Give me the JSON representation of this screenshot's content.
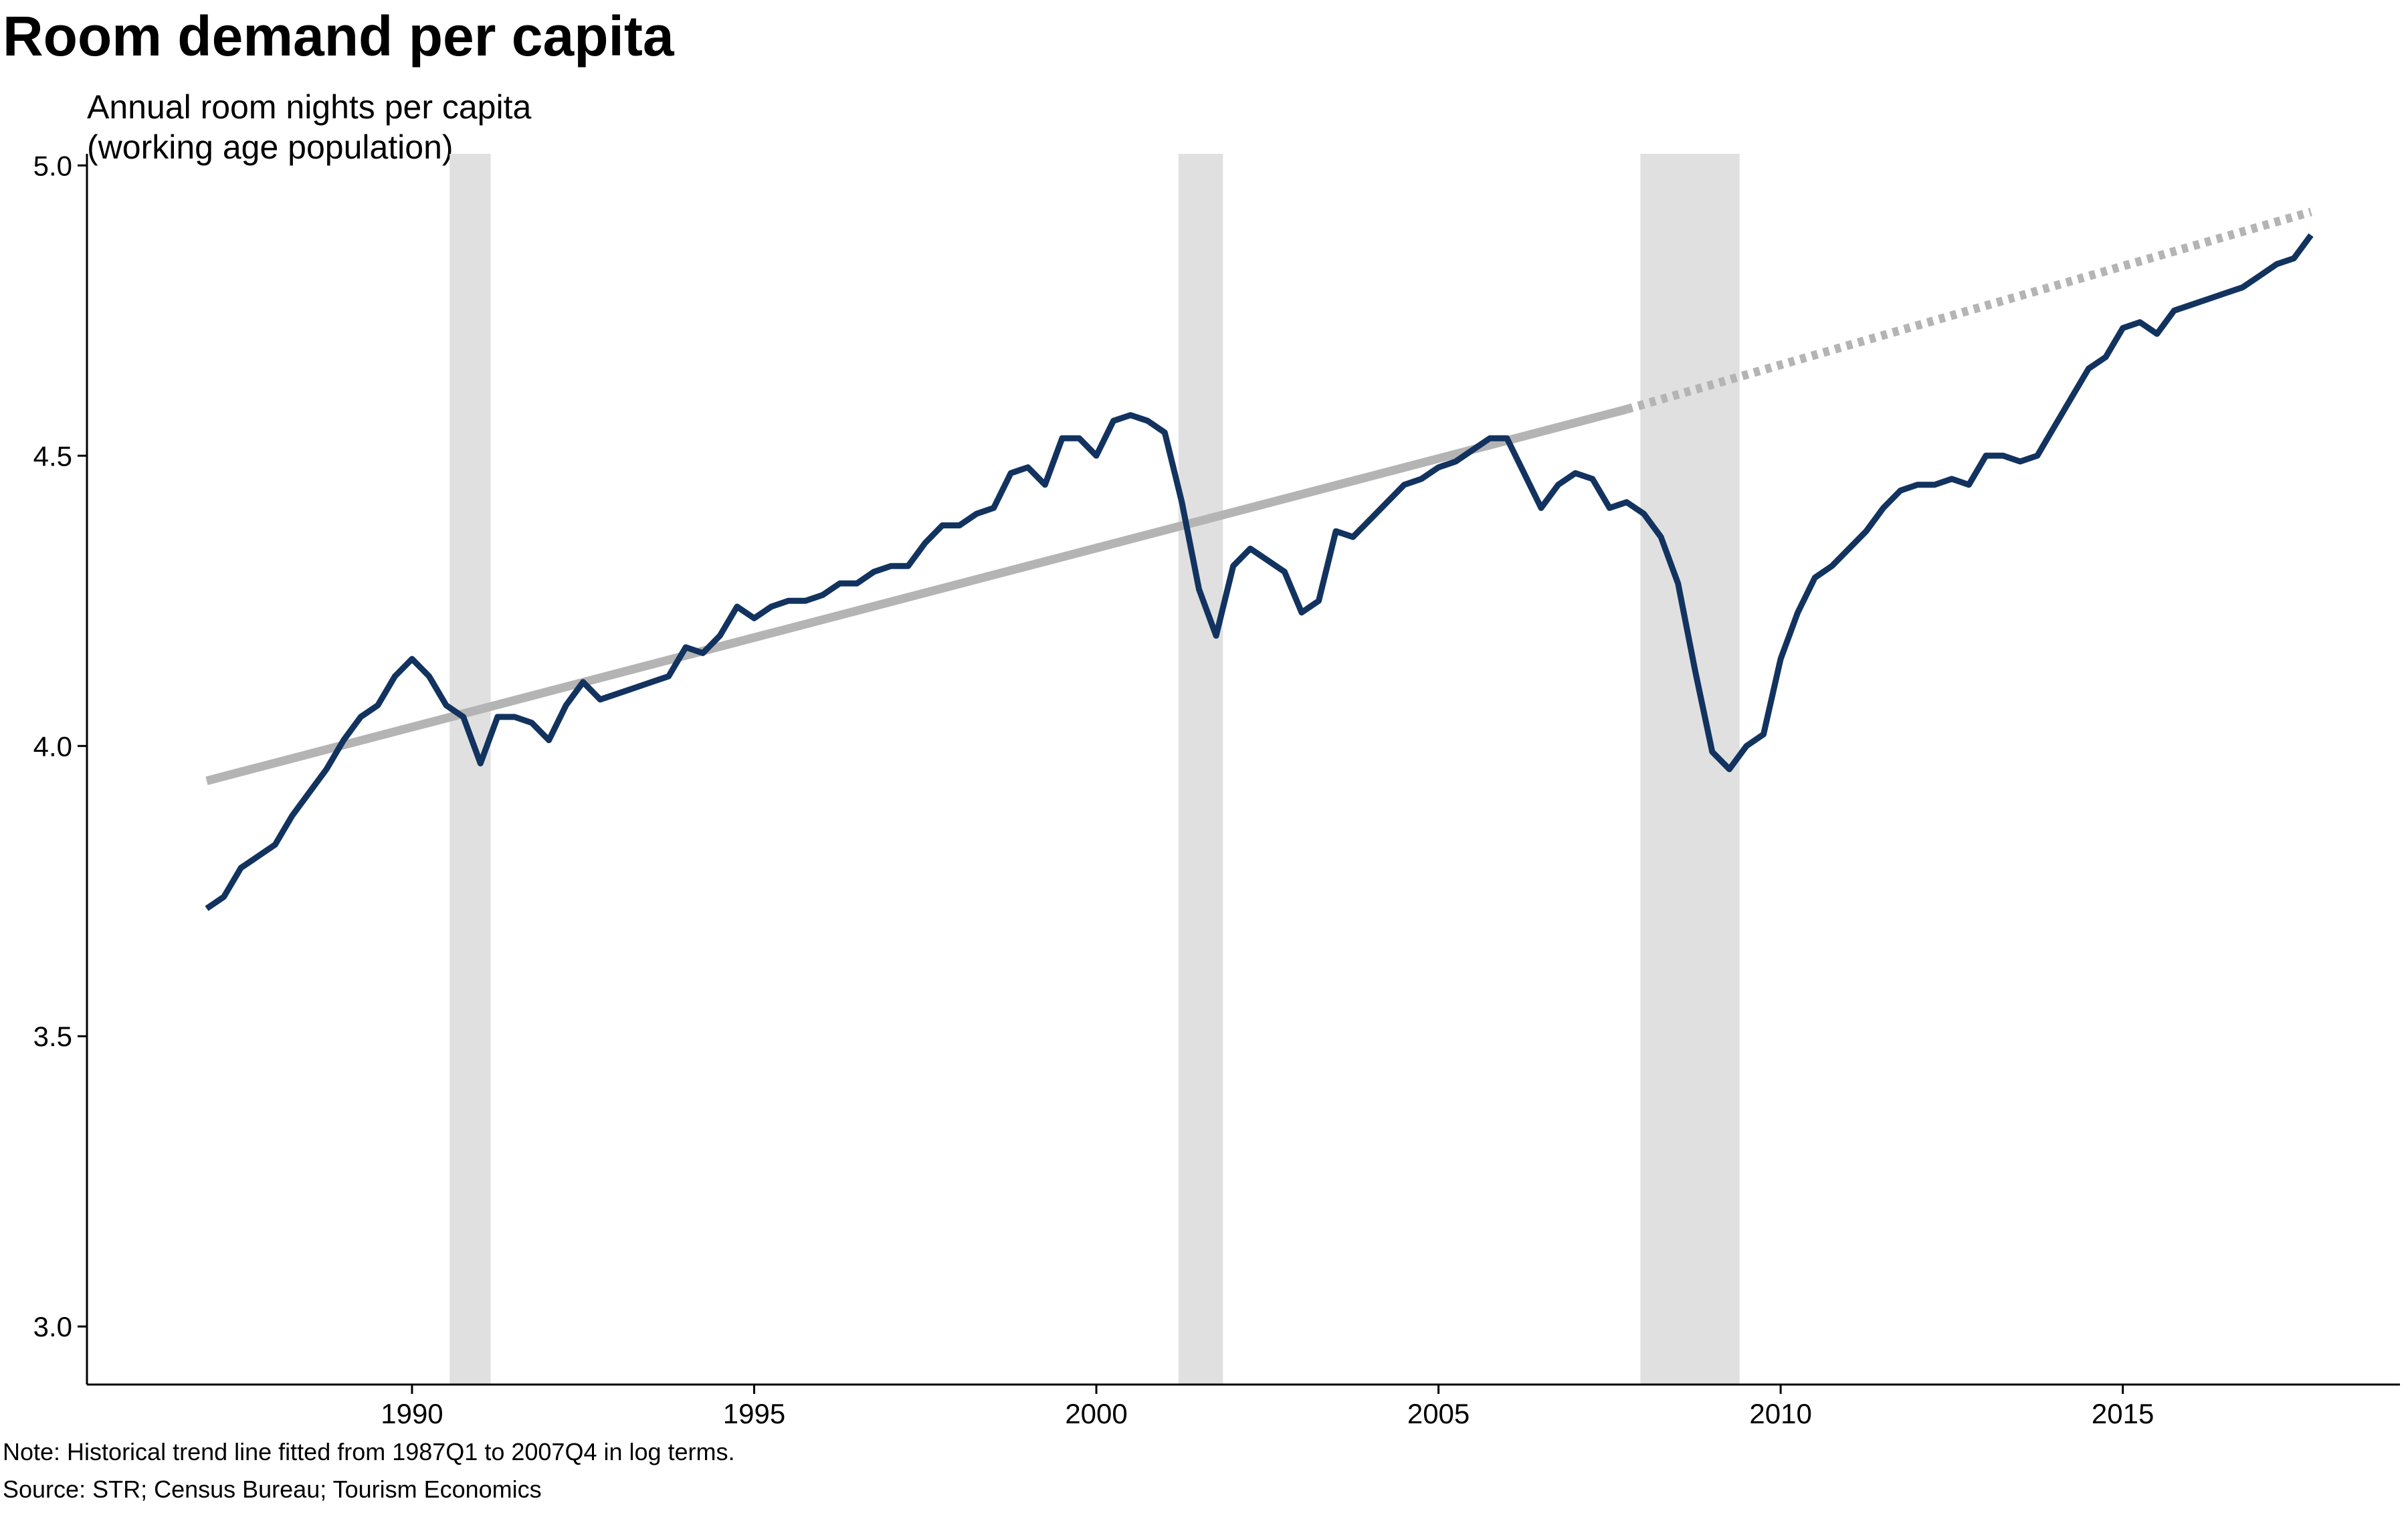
{
  "chart_data": {
    "type": "line",
    "title": "Room demand per capita",
    "ylabel": [
      "Annual room nights per capita",
      "(working age population)"
    ],
    "xlabel": "",
    "xlim": [
      1985.25,
      2019.05
    ],
    "ylim": [
      2.9,
      5.02
    ],
    "yticks": [
      3.0,
      3.5,
      4.0,
      4.5,
      5.0
    ],
    "ytick_labels": [
      "3.0",
      "3.5",
      "4.0",
      "4.5",
      "5.0"
    ],
    "xticks": [
      1990,
      1995,
      2000,
      2005,
      2010,
      2015
    ],
    "xtick_labels": [
      "1990",
      "1995",
      "2000",
      "2005",
      "2010",
      "2015"
    ],
    "grid": false,
    "legend": "none",
    "recession_periods": [
      [
        1990.55,
        1991.15
      ],
      [
        2001.2,
        2001.85
      ],
      [
        2007.95,
        2009.4
      ]
    ],
    "series": [
      {
        "style": "solid",
        "color": "#12335f",
        "x": [
          1987.0,
          1987.25,
          1987.5,
          1987.75,
          1988.0,
          1988.25,
          1988.5,
          1988.75,
          1989.0,
          1989.25,
          1989.5,
          1989.75,
          1990.0,
          1990.25,
          1990.5,
          1990.75,
          1991.0,
          1991.25,
          1991.5,
          1991.75,
          1992.0,
          1992.25,
          1992.5,
          1992.75,
          1993.0,
          1993.25,
          1993.5,
          1993.75,
          1994.0,
          1994.25,
          1994.5,
          1994.75,
          1995.0,
          1995.25,
          1995.5,
          1995.75,
          1996.0,
          1996.25,
          1996.5,
          1996.75,
          1997.0,
          1997.25,
          1997.5,
          1997.75,
          1998.0,
          1998.25,
          1998.5,
          1998.75,
          1999.0,
          1999.25,
          1999.5,
          1999.75,
          2000.0,
          2000.25,
          2000.5,
          2000.75,
          2001.0,
          2001.25,
          2001.5,
          2001.75,
          2002.0,
          2002.25,
          2002.5,
          2002.75,
          2003.0,
          2003.25,
          2003.5,
          2003.75,
          2004.0,
          2004.25,
          2004.5,
          2004.75,
          2005.0,
          2005.25,
          2005.5,
          2005.75,
          2006.0,
          2006.25,
          2006.5,
          2006.75,
          2007.0,
          2007.25,
          2007.5,
          2007.75,
          2008.0,
          2008.25,
          2008.5,
          2008.75,
          2009.0,
          2009.25,
          2009.5,
          2009.75,
          2010.0,
          2010.25,
          2010.5,
          2010.75,
          2011.0,
          2011.25,
          2011.5,
          2011.75,
          2012.0,
          2012.25,
          2012.5,
          2012.75,
          2013.0,
          2013.25,
          2013.5,
          2013.75,
          2014.0,
          2014.25,
          2014.5,
          2014.75,
          2015.0,
          2015.25,
          2015.5,
          2015.75,
          2016.0,
          2016.25,
          2016.5,
          2016.75,
          2017.0,
          2017.25,
          2017.5,
          2017.75
        ],
        "y": [
          3.72,
          3.74,
          3.79,
          3.81,
          3.83,
          3.88,
          3.92,
          3.96,
          4.01,
          4.05,
          4.07,
          4.12,
          4.15,
          4.12,
          4.07,
          4.05,
          3.97,
          4.05,
          4.05,
          4.04,
          4.01,
          4.07,
          4.11,
          4.08,
          4.09,
          4.1,
          4.11,
          4.12,
          4.17,
          4.16,
          4.19,
          4.24,
          4.22,
          4.24,
          4.25,
          4.25,
          4.26,
          4.28,
          4.28,
          4.3,
          4.31,
          4.31,
          4.35,
          4.38,
          4.38,
          4.4,
          4.41,
          4.47,
          4.48,
          4.45,
          4.53,
          4.53,
          4.5,
          4.56,
          4.57,
          4.56,
          4.54,
          4.42,
          4.27,
          4.19,
          4.31,
          4.34,
          4.32,
          4.3,
          4.23,
          4.25,
          4.37,
          4.36,
          4.39,
          4.42,
          4.45,
          4.46,
          4.48,
          4.49,
          4.51,
          4.53,
          4.53,
          4.47,
          4.41,
          4.45,
          4.47,
          4.46,
          4.41,
          4.42,
          4.4,
          4.36,
          4.28,
          4.13,
          3.99,
          3.96,
          4.0,
          4.02,
          4.15,
          4.23,
          4.29,
          4.31,
          4.34,
          4.37,
          4.41,
          4.44,
          4.45,
          4.45,
          4.46,
          4.45,
          4.5,
          4.5,
          4.49,
          4.5,
          4.55,
          4.6,
          4.65,
          4.67,
          4.72,
          4.73,
          4.71,
          4.75,
          4.76,
          4.77,
          4.78,
          4.79,
          4.81,
          4.83,
          4.84,
          4.88
        ]
      },
      {
        "style": "solid",
        "color": "#b4b4b4",
        "x": [
          1987.0,
          2007.75
        ],
        "y": [
          3.94,
          4.58
        ]
      },
      {
        "style": "dotted",
        "color": "#b4b4b4",
        "x": [
          2007.75,
          2017.75
        ],
        "y": [
          4.58,
          4.92
        ]
      }
    ],
    "note": "Note: Historical trend line fitted from 1987Q1 to 2007Q4 in log terms.",
    "source": "Source: STR; Census Bureau; Tourism Economics"
  }
}
